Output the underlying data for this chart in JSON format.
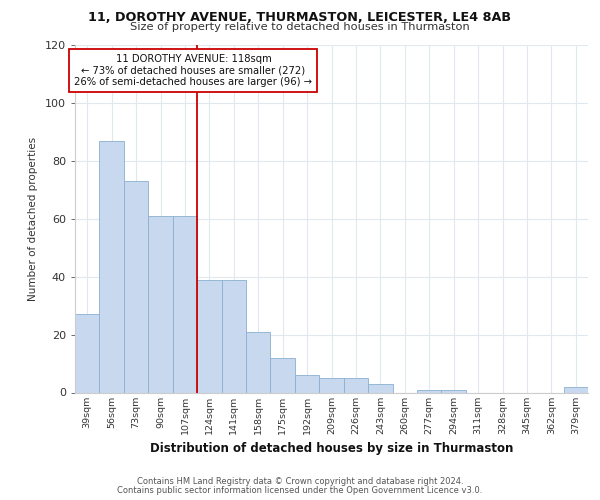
{
  "title1": "11, DOROTHY AVENUE, THURMASTON, LEICESTER, LE4 8AB",
  "title2": "Size of property relative to detached houses in Thurmaston",
  "xlabel": "Distribution of detached houses by size in Thurmaston",
  "ylabel": "Number of detached properties",
  "bar_labels": [
    "39sqm",
    "56sqm",
    "73sqm",
    "90sqm",
    "107sqm",
    "124sqm",
    "141sqm",
    "158sqm",
    "175sqm",
    "192sqm",
    "209sqm",
    "226sqm",
    "243sqm",
    "260sqm",
    "277sqm",
    "294sqm",
    "311sqm",
    "328sqm",
    "345sqm",
    "362sqm",
    "379sqm"
  ],
  "bar_values": [
    27,
    87,
    73,
    61,
    61,
    39,
    39,
    21,
    12,
    6,
    5,
    5,
    3,
    0,
    1,
    1,
    0,
    0,
    0,
    0,
    2
  ],
  "bar_color": "#c8d8ee",
  "bar_edge_color": "#8ab0d0",
  "vline_bar_index": 5,
  "annotation_text_line1": "11 DOROTHY AVENUE: 118sqm",
  "annotation_text_line2": "← 73% of detached houses are smaller (272)",
  "annotation_text_line3": "26% of semi-detached houses are larger (96) →",
  "vline_color": "#cc0000",
  "annotation_box_edge": "#cc0000",
  "footer1": "Contains HM Land Registry data © Crown copyright and database right 2024.",
  "footer2": "Contains public sector information licensed under the Open Government Licence v3.0.",
  "ylim": [
    0,
    120
  ],
  "fig_bg": "#ffffff",
  "axes_bg": "#ffffff"
}
